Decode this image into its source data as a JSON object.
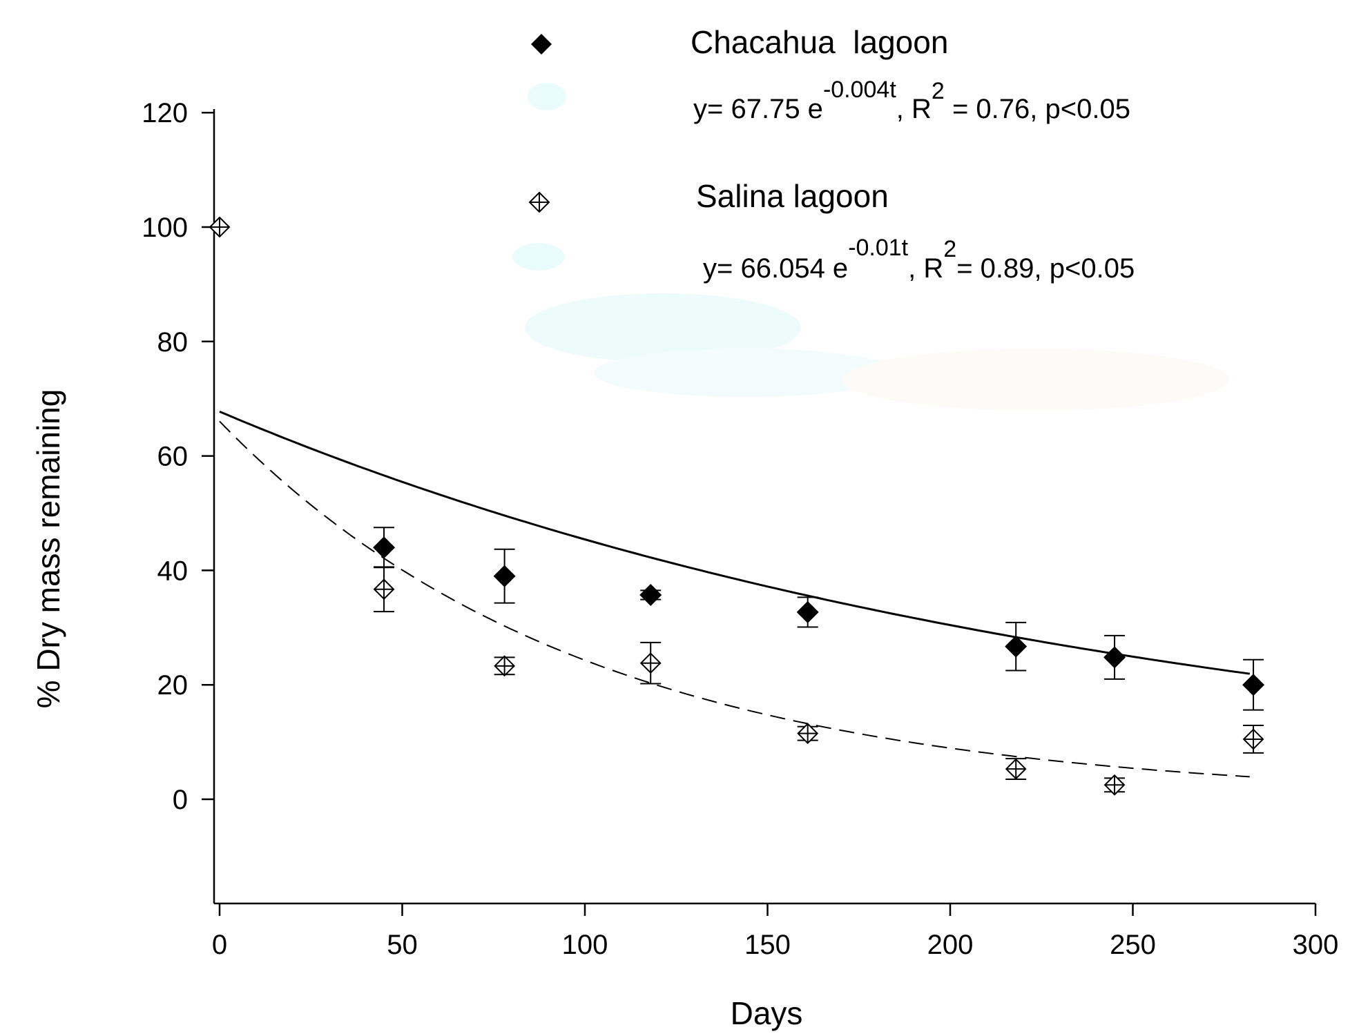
{
  "chart_data": {
    "type": "scatter",
    "title": "",
    "xlabel": "Days",
    "ylabel": "% Dry mass remaining",
    "xlim": [
      0,
      300
    ],
    "ylim": [
      -18,
      120
    ],
    "x_ticks": [
      0,
      50,
      100,
      150,
      200,
      250,
      300
    ],
    "y_ticks": [
      0,
      20,
      40,
      60,
      80,
      100,
      120
    ],
    "grid": false,
    "legend_position": "top-right",
    "series": [
      {
        "name": "Chacahua  lagoon",
        "marker": "filled-diamond",
        "x": [
          45,
          78,
          118,
          161,
          218,
          245,
          283
        ],
        "y": [
          44.0,
          39.0,
          35.7,
          32.7,
          26.7,
          24.8,
          20.0
        ],
        "error": [
          3.5,
          4.7,
          0.8,
          2.6,
          4.2,
          3.8,
          4.4
        ],
        "fit": {
          "equation_prefix": "y= 67.75 e",
          "exponent": "-0.004t",
          "r2_prefix": ", R",
          "r2_exp": "2",
          "r2_suffix": " = 0.76, p<0.05",
          "a": 67.75,
          "k": 0.004,
          "line_style": "solid"
        }
      },
      {
        "name": "Salina lagoon",
        "marker": "open-crossed-diamond",
        "x": [
          0,
          45,
          78,
          118,
          161,
          218,
          245,
          283
        ],
        "y": [
          100.0,
          36.7,
          23.3,
          23.8,
          11.5,
          5.3,
          2.5,
          10.5
        ],
        "error": [
          0,
          3.9,
          1.5,
          3.6,
          1.2,
          1.8,
          1.2,
          2.4
        ],
        "fit": {
          "equation_prefix": "y= 66.054 e",
          "exponent": "-0.01t",
          "r2_prefix": ", R",
          "r2_exp": "2",
          "r2_suffix": "= 0.89, p<0.05",
          "a": 66.054,
          "k": 0.01,
          "line_style": "dashed"
        }
      }
    ]
  }
}
